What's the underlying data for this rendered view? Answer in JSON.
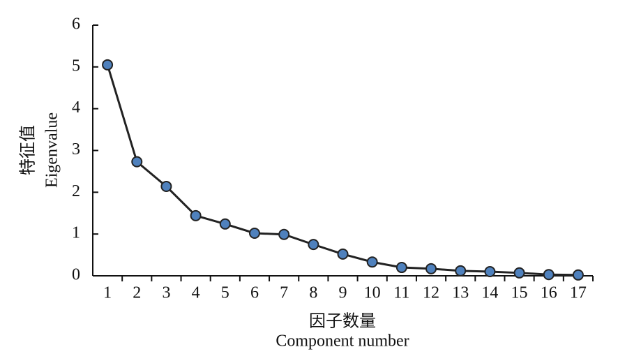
{
  "chart_data": {
    "type": "line",
    "ylabel": [
      "特征值",
      "Eigenvalue"
    ],
    "xlabel": [
      "因子数量",
      "Component number"
    ],
    "categories": [
      "1",
      "2",
      "3",
      "4",
      "5",
      "6",
      "7",
      "8",
      "9",
      "10",
      "11",
      "12",
      "13",
      "14",
      "15",
      "16",
      "17"
    ],
    "series": [
      {
        "name": "Eigenvalue",
        "color": "#4f81bd",
        "values": [
          5.05,
          2.73,
          2.14,
          1.44,
          1.24,
          1.02,
          0.99,
          0.75,
          0.52,
          0.33,
          0.2,
          0.17,
          0.12,
          0.1,
          0.07,
          0.03,
          0.02
        ]
      }
    ],
    "ylim": [
      0,
      6
    ],
    "yticks": [
      0,
      1,
      2,
      3,
      4,
      5,
      6
    ]
  }
}
